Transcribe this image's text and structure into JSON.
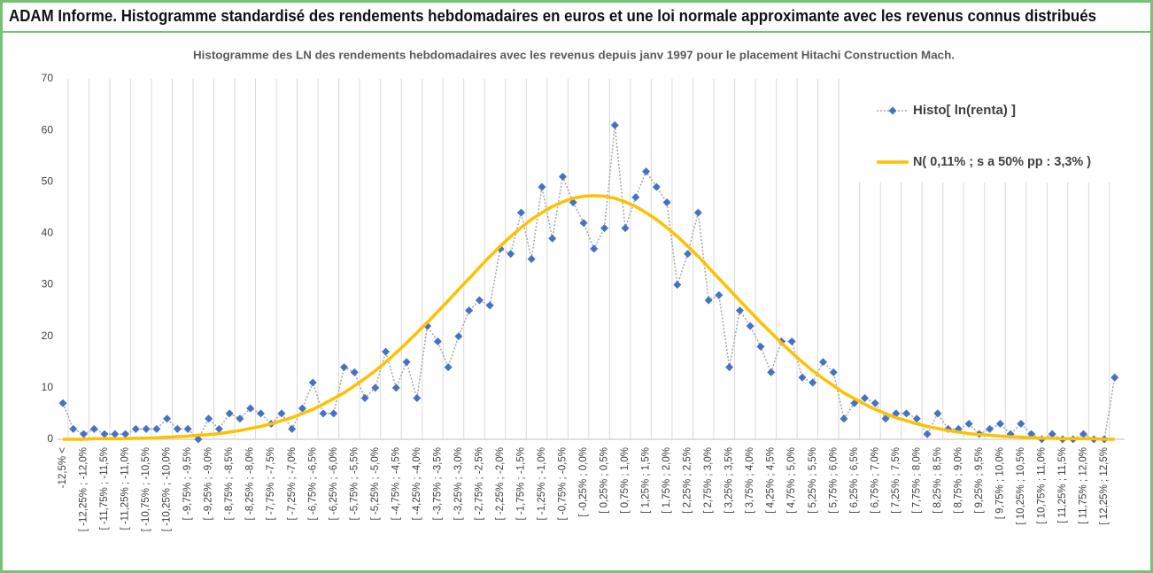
{
  "chart_data": {
    "type": "line",
    "header": "ADAM Informe. Histogramme standardisé des rendements hebdomadaires en euros et une loi normale approximante avec les revenus connus distribués",
    "title": "Histogramme des LN des rendements hebdomadaires avec les revenus depuis janv 1997 pour le placement Hitachi Construction Mach.",
    "categories": [
      "-12,5% <",
      null,
      "[ -12,25% ; -12,0%",
      null,
      "[ -11,75% ; -11,5%",
      null,
      "[ -11,25% ; -11,0%",
      null,
      "[ -10,75% ; -10,5%",
      null,
      "[ -10,25% ; -10,0%",
      null,
      "[ -9,75% ; -9,5%",
      null,
      "[ -9,25% ; -9,0%",
      null,
      "[ -8,75% ; -8,5%",
      null,
      "[ -8,25% ; -8,0%",
      null,
      "[ -7,75% ; -7,5%",
      null,
      "[ -7,25% ; -7,0%",
      null,
      "[ -6,75% ; -6,5%",
      null,
      "[ -6,25% ; -6,0%",
      null,
      "[ -5,75% ; -5,5%",
      null,
      "[ -5,25% ; -5,0%",
      null,
      "[ -4,75% ; -4,5%",
      null,
      "[ -4,25% ; -4,0%",
      null,
      "[ -3,75% ; -3,5%",
      null,
      "[ -3,25% ; -3,0%",
      null,
      "[ -2,75% ; -2,5%",
      null,
      "[ -2,25% ; -2,0%",
      null,
      "[ -1,75% ; -1,5%",
      null,
      "[ -1,25% ; -1,0%",
      null,
      "[ -0,75% ; -0,5%",
      null,
      "[ -0,25% ; 0,0%",
      null,
      "[ 0,25% ; 0,5%",
      null,
      "[ 0,75% ; 1,0%",
      null,
      "[ 1,25% ; 1,5%",
      null,
      "[ 1,75% ; 2,0%",
      null,
      "[ 2,25% ; 2,5%",
      null,
      "[ 2,75% ; 3,0%",
      null,
      "[ 3,25% ; 3,5%",
      null,
      "[ 3,75% ; 4,0%",
      null,
      "[ 4,25% ; 4,5%",
      null,
      "[ 4,75% ; 5,0%",
      null,
      "[ 5,25% ; 5,5%",
      null,
      "[ 5,75% ; 6,0%",
      null,
      "[ 6,25% ; 6,5%",
      null,
      "[ 6,75% ; 7,0%",
      null,
      "[ 7,25% ; 7,5%",
      null,
      "[ 7,75% ; 8,0%",
      null,
      "[ 8,25% ; 8,5%",
      null,
      "[ 8,75% ; 9,0%",
      null,
      "[ 9,25% ; 9,5%",
      null,
      "[ 9,75% ; 10,0%",
      null,
      "[ 10,25% ; 10,5%",
      null,
      "[ 10,75% ; 11,0%",
      null,
      "[ 11,25% ; 11,5%",
      null,
      "[ 11,75% ; 12,0%",
      null,
      "[ 12,25% ; 12,5%",
      null
    ],
    "series": [
      {
        "name": "Histo[ ln(renta) ]",
        "color": "#4472c4",
        "line_color": "#a5a5a5",
        "values": [
          7,
          2,
          1,
          2,
          1,
          1,
          1,
          2,
          2,
          2,
          4,
          2,
          2,
          0,
          4,
          2,
          5,
          4,
          6,
          5,
          3,
          5,
          2,
          6,
          11,
          5,
          5,
          14,
          13,
          8,
          10,
          17,
          10,
          15,
          8,
          22,
          19,
          14,
          20,
          25,
          27,
          26,
          37,
          36,
          44,
          35,
          49,
          39,
          51,
          46,
          42,
          37,
          41,
          61,
          41,
          47,
          52,
          49,
          46,
          30,
          36,
          44,
          27,
          28,
          14,
          25,
          22,
          18,
          13,
          19,
          19,
          12,
          11,
          15,
          13,
          4,
          7,
          8,
          7,
          4,
          5,
          5,
          4,
          1,
          5,
          2,
          2,
          3,
          1,
          2,
          3,
          1,
          3,
          1,
          0,
          1,
          0,
          0,
          1,
          0,
          0,
          12
        ]
      },
      {
        "name": "N( 0,11% ; s a 50% pp : 3,3% )",
        "color": "#ffc000",
        "values": [
          0.0,
          0.0,
          0.0,
          0.1,
          0.1,
          0.1,
          0.1,
          0.2,
          0.2,
          0.3,
          0.4,
          0.5,
          0.6,
          0.8,
          0.9,
          1.1,
          1.4,
          1.7,
          2.1,
          2.5,
          3.0,
          3.6,
          4.2,
          5.0,
          5.8,
          6.8,
          7.9,
          9.0,
          10.4,
          11.8,
          13.3,
          15.0,
          16.8,
          18.7,
          20.7,
          22.7,
          24.8,
          26.9,
          29.1,
          31.2,
          33.4,
          35.5,
          37.5,
          39.4,
          41.1,
          42.7,
          44.0,
          45.2,
          46.1,
          46.8,
          47.2,
          47.3,
          47.2,
          46.8,
          46.1,
          45.2,
          44.0,
          42.7,
          41.1,
          39.4,
          37.5,
          35.5,
          33.4,
          31.2,
          29.1,
          26.9,
          24.8,
          22.7,
          20.7,
          18.7,
          16.8,
          15.0,
          13.3,
          11.8,
          10.4,
          9.0,
          7.9,
          6.8,
          5.8,
          5.0,
          4.2,
          3.6,
          3.0,
          2.5,
          2.1,
          1.7,
          1.4,
          1.1,
          0.9,
          0.8,
          0.6,
          0.5,
          0.4,
          0.3,
          0.2,
          0.2,
          0.1,
          0.1,
          0.1,
          0.1,
          0.0,
          0.0
        ]
      }
    ],
    "ylim": [
      0,
      70
    ],
    "yticks": [
      0,
      10,
      20,
      30,
      40,
      50,
      60,
      70
    ],
    "legend": "top-right",
    "grid": "vertical"
  }
}
